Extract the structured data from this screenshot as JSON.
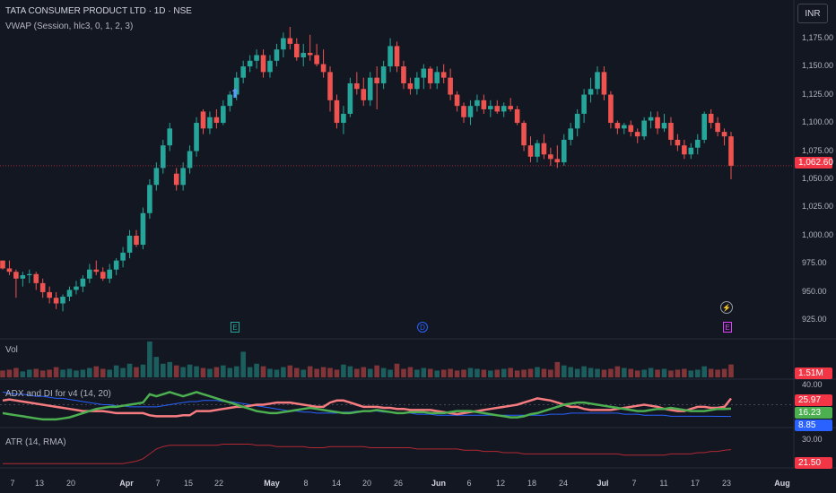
{
  "header": {
    "title": "TATA CONSUMER PRODUCT LTD · 1D · NSE",
    "indicator": "VWAP (Session, hlc3, 0, 1, 2, 3)",
    "currency": "INR"
  },
  "price_axis": {
    "labels": [
      "1,175.00",
      "1,150.00",
      "1,125.00",
      "1,100.00",
      "1,075.00",
      "1,050.00",
      "1,025.00",
      "1,000.00",
      "975.00",
      "950.00",
      "925.00"
    ],
    "last_price": "1,062.60"
  },
  "volume_panel": {
    "title": "Vol",
    "last_value": "1.51M"
  },
  "adx_panel": {
    "title": "ADX and DI for v4 (14, 20)",
    "level": "40.00",
    "values": [
      "25.97",
      "16.23",
      "8.85"
    ]
  },
  "atr_panel": {
    "title": "ATR (14, RMA)",
    "level": "30.00",
    "last_value": "21.50"
  },
  "time_axis": {
    "labels": [
      "7",
      "13",
      "20",
      "Apr",
      "7",
      "15",
      "22",
      "May",
      "8",
      "14",
      "20",
      "26",
      "Jun",
      "6",
      "12",
      "18",
      "24",
      "Jul",
      "7",
      "11",
      "17",
      "23",
      "Aug"
    ]
  },
  "events": {
    "earnings_1": "E",
    "dividend": "D",
    "earnings_2": "E"
  },
  "colors": {
    "up": "#26a69a",
    "down": "#ef5350",
    "bg": "#131722",
    "adx_green": "#4caf50",
    "adx_red": "#f23645",
    "adx_blue": "#2962ff"
  },
  "chart_data": {
    "type": "candlestick",
    "ylim": [
      915,
      1185
    ],
    "candles": [
      [
        978,
        978,
        970,
        971
      ],
      [
        971,
        978,
        965,
        968
      ],
      [
        968,
        970,
        945,
        962
      ],
      [
        962,
        968,
        955,
        965
      ],
      [
        965,
        970,
        958,
        966
      ],
      [
        966,
        968,
        952,
        958
      ],
      [
        958,
        962,
        945,
        950
      ],
      [
        950,
        955,
        940,
        945
      ],
      [
        945,
        950,
        935,
        940
      ],
      [
        940,
        948,
        933,
        946
      ],
      [
        946,
        955,
        942,
        952
      ],
      [
        952,
        960,
        948,
        955
      ],
      [
        955,
        965,
        950,
        962
      ],
      [
        962,
        975,
        958,
        970
      ],
      [
        970,
        978,
        965,
        968
      ],
      [
        968,
        972,
        960,
        962
      ],
      [
        962,
        975,
        958,
        970
      ],
      [
        970,
        980,
        965,
        978
      ],
      [
        978,
        990,
        972,
        985
      ],
      [
        985,
        1005,
        980,
        1000
      ],
      [
        1000,
        1005,
        990,
        992
      ],
      [
        992,
        1025,
        988,
        1020
      ],
      [
        1020,
        1050,
        1015,
        1045
      ],
      [
        1045,
        1065,
        1040,
        1060
      ],
      [
        1060,
        1085,
        1055,
        1080
      ],
      [
        1080,
        1100,
        1075,
        1095
      ],
      [
        1055,
        1060,
        1040,
        1045
      ],
      [
        1045,
        1065,
        1040,
        1060
      ],
      [
        1060,
        1080,
        1055,
        1075
      ],
      [
        1075,
        1105,
        1070,
        1100
      ],
      [
        1110,
        1112,
        1090,
        1095
      ],
      [
        1095,
        1110,
        1090,
        1105
      ],
      [
        1105,
        1112,
        1095,
        1100
      ],
      [
        1100,
        1120,
        1098,
        1115
      ],
      [
        1115,
        1128,
        1110,
        1125
      ],
      [
        1125,
        1145,
        1120,
        1140
      ],
      [
        1140,
        1155,
        1135,
        1150
      ],
      [
        1150,
        1160,
        1145,
        1155
      ],
      [
        1155,
        1165,
        1148,
        1160
      ],
      [
        1160,
        1165,
        1140,
        1145
      ],
      [
        1145,
        1160,
        1140,
        1155
      ],
      [
        1155,
        1170,
        1150,
        1165
      ],
      [
        1165,
        1180,
        1158,
        1175
      ],
      [
        1175,
        1185,
        1165,
        1170
      ],
      [
        1170,
        1175,
        1155,
        1158
      ],
      [
        1158,
        1170,
        1150,
        1162
      ],
      [
        1162,
        1178,
        1155,
        1160
      ],
      [
        1160,
        1170,
        1150,
        1152
      ],
      [
        1152,
        1165,
        1140,
        1145
      ],
      [
        1145,
        1150,
        1110,
        1120
      ],
      [
        1120,
        1125,
        1095,
        1100
      ],
      [
        1100,
        1115,
        1090,
        1108
      ],
      [
        1108,
        1140,
        1105,
        1135
      ],
      [
        1135,
        1145,
        1125,
        1130
      ],
      [
        1130,
        1140,
        1115,
        1120
      ],
      [
        1120,
        1145,
        1115,
        1140
      ],
      [
        1140,
        1150,
        1112,
        1135
      ],
      [
        1135,
        1155,
        1130,
        1150
      ],
      [
        1150,
        1175,
        1145,
        1168
      ],
      [
        1168,
        1172,
        1145,
        1150
      ],
      [
        1150,
        1155,
        1130,
        1135
      ],
      [
        1135,
        1140,
        1125,
        1130
      ],
      [
        1130,
        1145,
        1125,
        1140
      ],
      [
        1140,
        1152,
        1130,
        1148
      ],
      [
        1148,
        1150,
        1130,
        1135
      ],
      [
        1135,
        1150,
        1130,
        1145
      ],
      [
        1145,
        1152,
        1135,
        1140
      ],
      [
        1140,
        1148,
        1120,
        1125
      ],
      [
        1125,
        1128,
        1110,
        1115
      ],
      [
        1115,
        1118,
        1100,
        1105
      ],
      [
        1105,
        1120,
        1098,
        1115
      ],
      [
        1115,
        1125,
        1110,
        1120
      ],
      [
        1120,
        1125,
        1108,
        1112
      ],
      [
        1112,
        1120,
        1105,
        1115
      ],
      [
        1115,
        1120,
        1108,
        1110
      ],
      [
        1110,
        1118,
        1105,
        1115
      ],
      [
        1115,
        1122,
        1110,
        1112
      ],
      [
        1112,
        1115,
        1098,
        1100
      ],
      [
        1100,
        1102,
        1075,
        1080
      ],
      [
        1080,
        1088,
        1065,
        1070
      ],
      [
        1070,
        1085,
        1065,
        1082
      ],
      [
        1082,
        1090,
        1068,
        1072
      ],
      [
        1072,
        1078,
        1062,
        1068
      ],
      [
        1068,
        1080,
        1060,
        1065
      ],
      [
        1065,
        1090,
        1062,
        1085
      ],
      [
        1085,
        1100,
        1080,
        1095
      ],
      [
        1095,
        1112,
        1088,
        1108
      ],
      [
        1108,
        1130,
        1100,
        1125
      ],
      [
        1125,
        1140,
        1118,
        1130
      ],
      [
        1130,
        1150,
        1125,
        1145
      ],
      [
        1145,
        1150,
        1120,
        1125
      ],
      [
        1125,
        1128,
        1095,
        1100
      ],
      [
        1100,
        1102,
        1090,
        1095
      ],
      [
        1095,
        1100,
        1090,
        1098
      ],
      [
        1098,
        1102,
        1088,
        1092
      ],
      [
        1092,
        1095,
        1082,
        1088
      ],
      [
        1088,
        1105,
        1085,
        1102
      ],
      [
        1102,
        1110,
        1095,
        1105
      ],
      [
        1105,
        1110,
        1090,
        1095
      ],
      [
        1095,
        1108,
        1092,
        1100
      ],
      [
        1100,
        1105,
        1080,
        1085
      ],
      [
        1085,
        1090,
        1075,
        1080
      ],
      [
        1080,
        1085,
        1068,
        1072
      ],
      [
        1072,
        1082,
        1068,
        1078
      ],
      [
        1078,
        1090,
        1072,
        1085
      ],
      [
        1085,
        1110,
        1082,
        1108
      ],
      [
        1108,
        1112,
        1095,
        1100
      ],
      [
        1100,
        1105,
        1088,
        1092
      ],
      [
        1092,
        1095,
        1080,
        1088
      ],
      [
        1088,
        1092,
        1050,
        1062
      ]
    ],
    "volume": [
      0.8,
      0.9,
      1.1,
      0.7,
      0.9,
      1.0,
      0.8,
      0.9,
      1.2,
      0.9,
      1.0,
      0.8,
      0.9,
      1.1,
      1.3,
      1.0,
      0.9,
      1.4,
      1.1,
      1.6,
      1.2,
      1.5,
      4.2,
      2.4,
      1.6,
      1.8,
      1.4,
      1.2,
      1.5,
      1.3,
      1.1,
      1.0,
      1.2,
      1.4,
      1.1,
      1.3,
      3.0,
      1.2,
      1.6,
      1.3,
      1.0,
      0.9,
      1.2,
      1.4,
      1.1,
      0.9,
      1.3,
      1.0,
      1.2,
      1.1,
      0.9,
      1.5,
      1.3,
      1.0,
      1.2,
      1.0,
      1.4,
      1.1,
      0.9,
      1.6,
      1.0,
      1.2,
      0.9,
      1.1,
      1.0,
      0.8,
      0.9,
      1.0,
      0.8,
      0.9,
      1.1,
      1.0,
      0.9,
      0.8,
      0.9,
      1.0,
      1.1,
      0.8,
      0.9,
      1.0,
      1.2,
      1.0,
      0.9,
      1.8,
      1.4,
      1.2,
      1.0,
      1.3,
      1.1,
      1.0,
      0.9,
      1.0,
      1.3,
      1.1,
      1.0,
      0.8,
      0.9,
      1.1,
      0.9,
      1.0,
      0.8,
      0.9,
      1.0,
      0.8,
      0.9,
      1.3,
      1.0,
      0.9,
      1.0,
      1.51
    ],
    "adx_green": [
      12,
      11,
      10,
      9,
      8,
      7,
      6,
      6,
      6,
      7,
      8,
      10,
      12,
      14,
      16,
      17,
      18,
      18,
      19,
      20,
      21,
      22,
      30,
      28,
      30,
      32,
      30,
      28,
      30,
      32,
      30,
      28,
      26,
      24,
      22,
      20,
      18,
      16,
      14,
      13,
      12,
      12,
      13,
      14,
      15,
      16,
      17,
      16,
      15,
      14,
      13,
      12,
      12,
      13,
      14,
      14,
      15,
      14,
      13,
      12,
      12,
      13,
      13,
      13,
      12,
      12,
      12,
      13,
      14,
      14,
      14,
      13,
      12,
      11,
      10,
      9,
      8,
      8,
      9,
      11,
      12,
      14,
      16,
      18,
      20,
      21,
      22,
      22,
      21,
      20,
      19,
      18,
      17,
      16,
      15,
      14,
      14,
      15,
      16,
      16,
      17,
      16,
      15,
      14,
      14,
      14,
      15,
      16,
      16,
      16.23
    ],
    "adx_red": [
      24,
      25,
      24,
      23,
      22,
      21,
      20,
      19,
      18,
      17,
      16,
      15,
      14,
      14,
      14,
      14,
      13,
      12,
      12,
      12,
      12,
      12,
      10,
      9,
      9,
      9,
      9,
      10,
      10,
      14,
      14,
      14,
      15,
      16,
      17,
      18,
      18,
      19,
      20,
      20,
      21,
      22,
      22,
      22,
      21,
      20,
      19,
      18,
      18,
      22,
      24,
      24,
      22,
      20,
      18,
      18,
      18,
      17,
      17,
      16,
      16,
      15,
      15,
      15,
      15,
      14,
      13,
      12,
      11,
      12,
      13,
      14,
      15,
      16,
      17,
      18,
      19,
      20,
      22,
      24,
      26,
      25,
      24,
      22,
      20,
      18,
      18,
      16,
      15,
      15,
      15,
      15,
      16,
      17,
      18,
      19,
      20,
      19,
      18,
      16,
      15,
      14,
      14,
      16,
      18,
      18,
      17,
      17,
      18,
      25.97
    ],
    "adx_blue": [
      32,
      31,
      30,
      30,
      29,
      28,
      28,
      27,
      26,
      26,
      25,
      24,
      23,
      22,
      21,
      20,
      20,
      19,
      19,
      18,
      18,
      18,
      18,
      18,
      19,
      20,
      21,
      22,
      23,
      23,
      24,
      24,
      24,
      23,
      23,
      22,
      21,
      20,
      19,
      18,
      17,
      16,
      15,
      14,
      14,
      13,
      13,
      12,
      12,
      12,
      12,
      13,
      13,
      14,
      14,
      14,
      14,
      13,
      13,
      12,
      12,
      12,
      11,
      11,
      11,
      10,
      10,
      10,
      10,
      10,
      10,
      10,
      10,
      10,
      10,
      10,
      10,
      10,
      10,
      10,
      10,
      10,
      11,
      11,
      11,
      12,
      12,
      12,
      12,
      12,
      12,
      12,
      12,
      11,
      11,
      11,
      10,
      10,
      10,
      10,
      9,
      9,
      9,
      9,
      9,
      9,
      9,
      8.9,
      8.9,
      8.85
    ],
    "atr": [
      10,
      10,
      10,
      10,
      10,
      10,
      10,
      10,
      10,
      10,
      10,
      10,
      10,
      10,
      10,
      10,
      10,
      10,
      10,
      11,
      12,
      14,
      18,
      22,
      24,
      25,
      25,
      25,
      25,
      25,
      25,
      25,
      25,
      26,
      26,
      26,
      26,
      26,
      25,
      25,
      25,
      24,
      24,
      24,
      24,
      24,
      23,
      23,
      23,
      24,
      24,
      24,
      24,
      24,
      24,
      23,
      23,
      23,
      23,
      23,
      23,
      23,
      22,
      22,
      22,
      22,
      22,
      22,
      22,
      21,
      21,
      21,
      20,
      20,
      20,
      19,
      19,
      19,
      18,
      18,
      18,
      18,
      18,
      18,
      18,
      18,
      18,
      18,
      18,
      18,
      18,
      18,
      18,
      17,
      17,
      17,
      17,
      17,
      17,
      17,
      18,
      18,
      18,
      18,
      19,
      19,
      20,
      20,
      21,
      21.5
    ]
  }
}
